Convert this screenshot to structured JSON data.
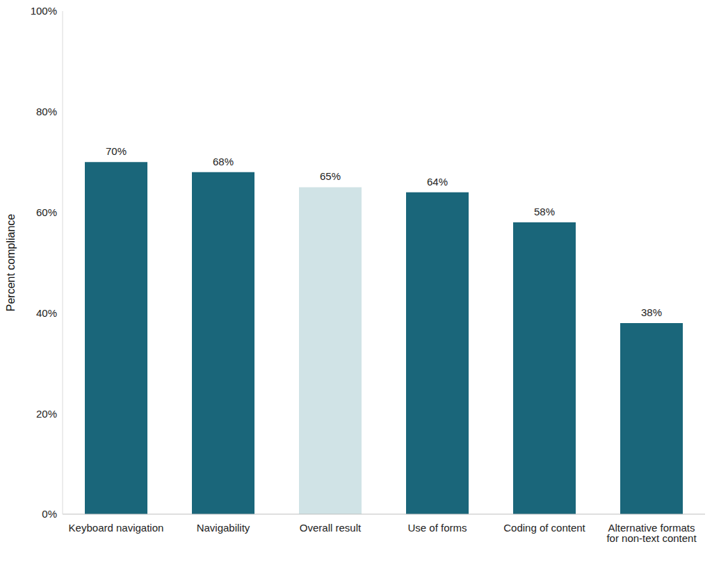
{
  "chart_data": {
    "type": "bar",
    "categories": [
      "Keyboard navigation",
      "Navigability",
      "Overall result",
      "Use of forms",
      "Coding of content",
      "Alternative formats for non-text content"
    ],
    "values": [
      70,
      68,
      65,
      64,
      58,
      38
    ],
    "value_labels": [
      "70%",
      "68%",
      "65%",
      "64%",
      "58%",
      "38%"
    ],
    "colors": [
      "#1a667a",
      "#1a667a",
      "#d0e3e6",
      "#1a667a",
      "#1a667a",
      "#1a667a"
    ],
    "y_label": "Percent compliance",
    "ylim": [
      0,
      100
    ],
    "yticks": [
      {
        "value": 0,
        "label": "0%"
      },
      {
        "value": 20,
        "label": "20%"
      },
      {
        "value": 40,
        "label": "40%"
      },
      {
        "value": 60,
        "label": "60%"
      },
      {
        "value": 80,
        "label": "80%"
      },
      {
        "value": 100,
        "label": "100%"
      }
    ],
    "grid": false,
    "data_labels": true
  }
}
